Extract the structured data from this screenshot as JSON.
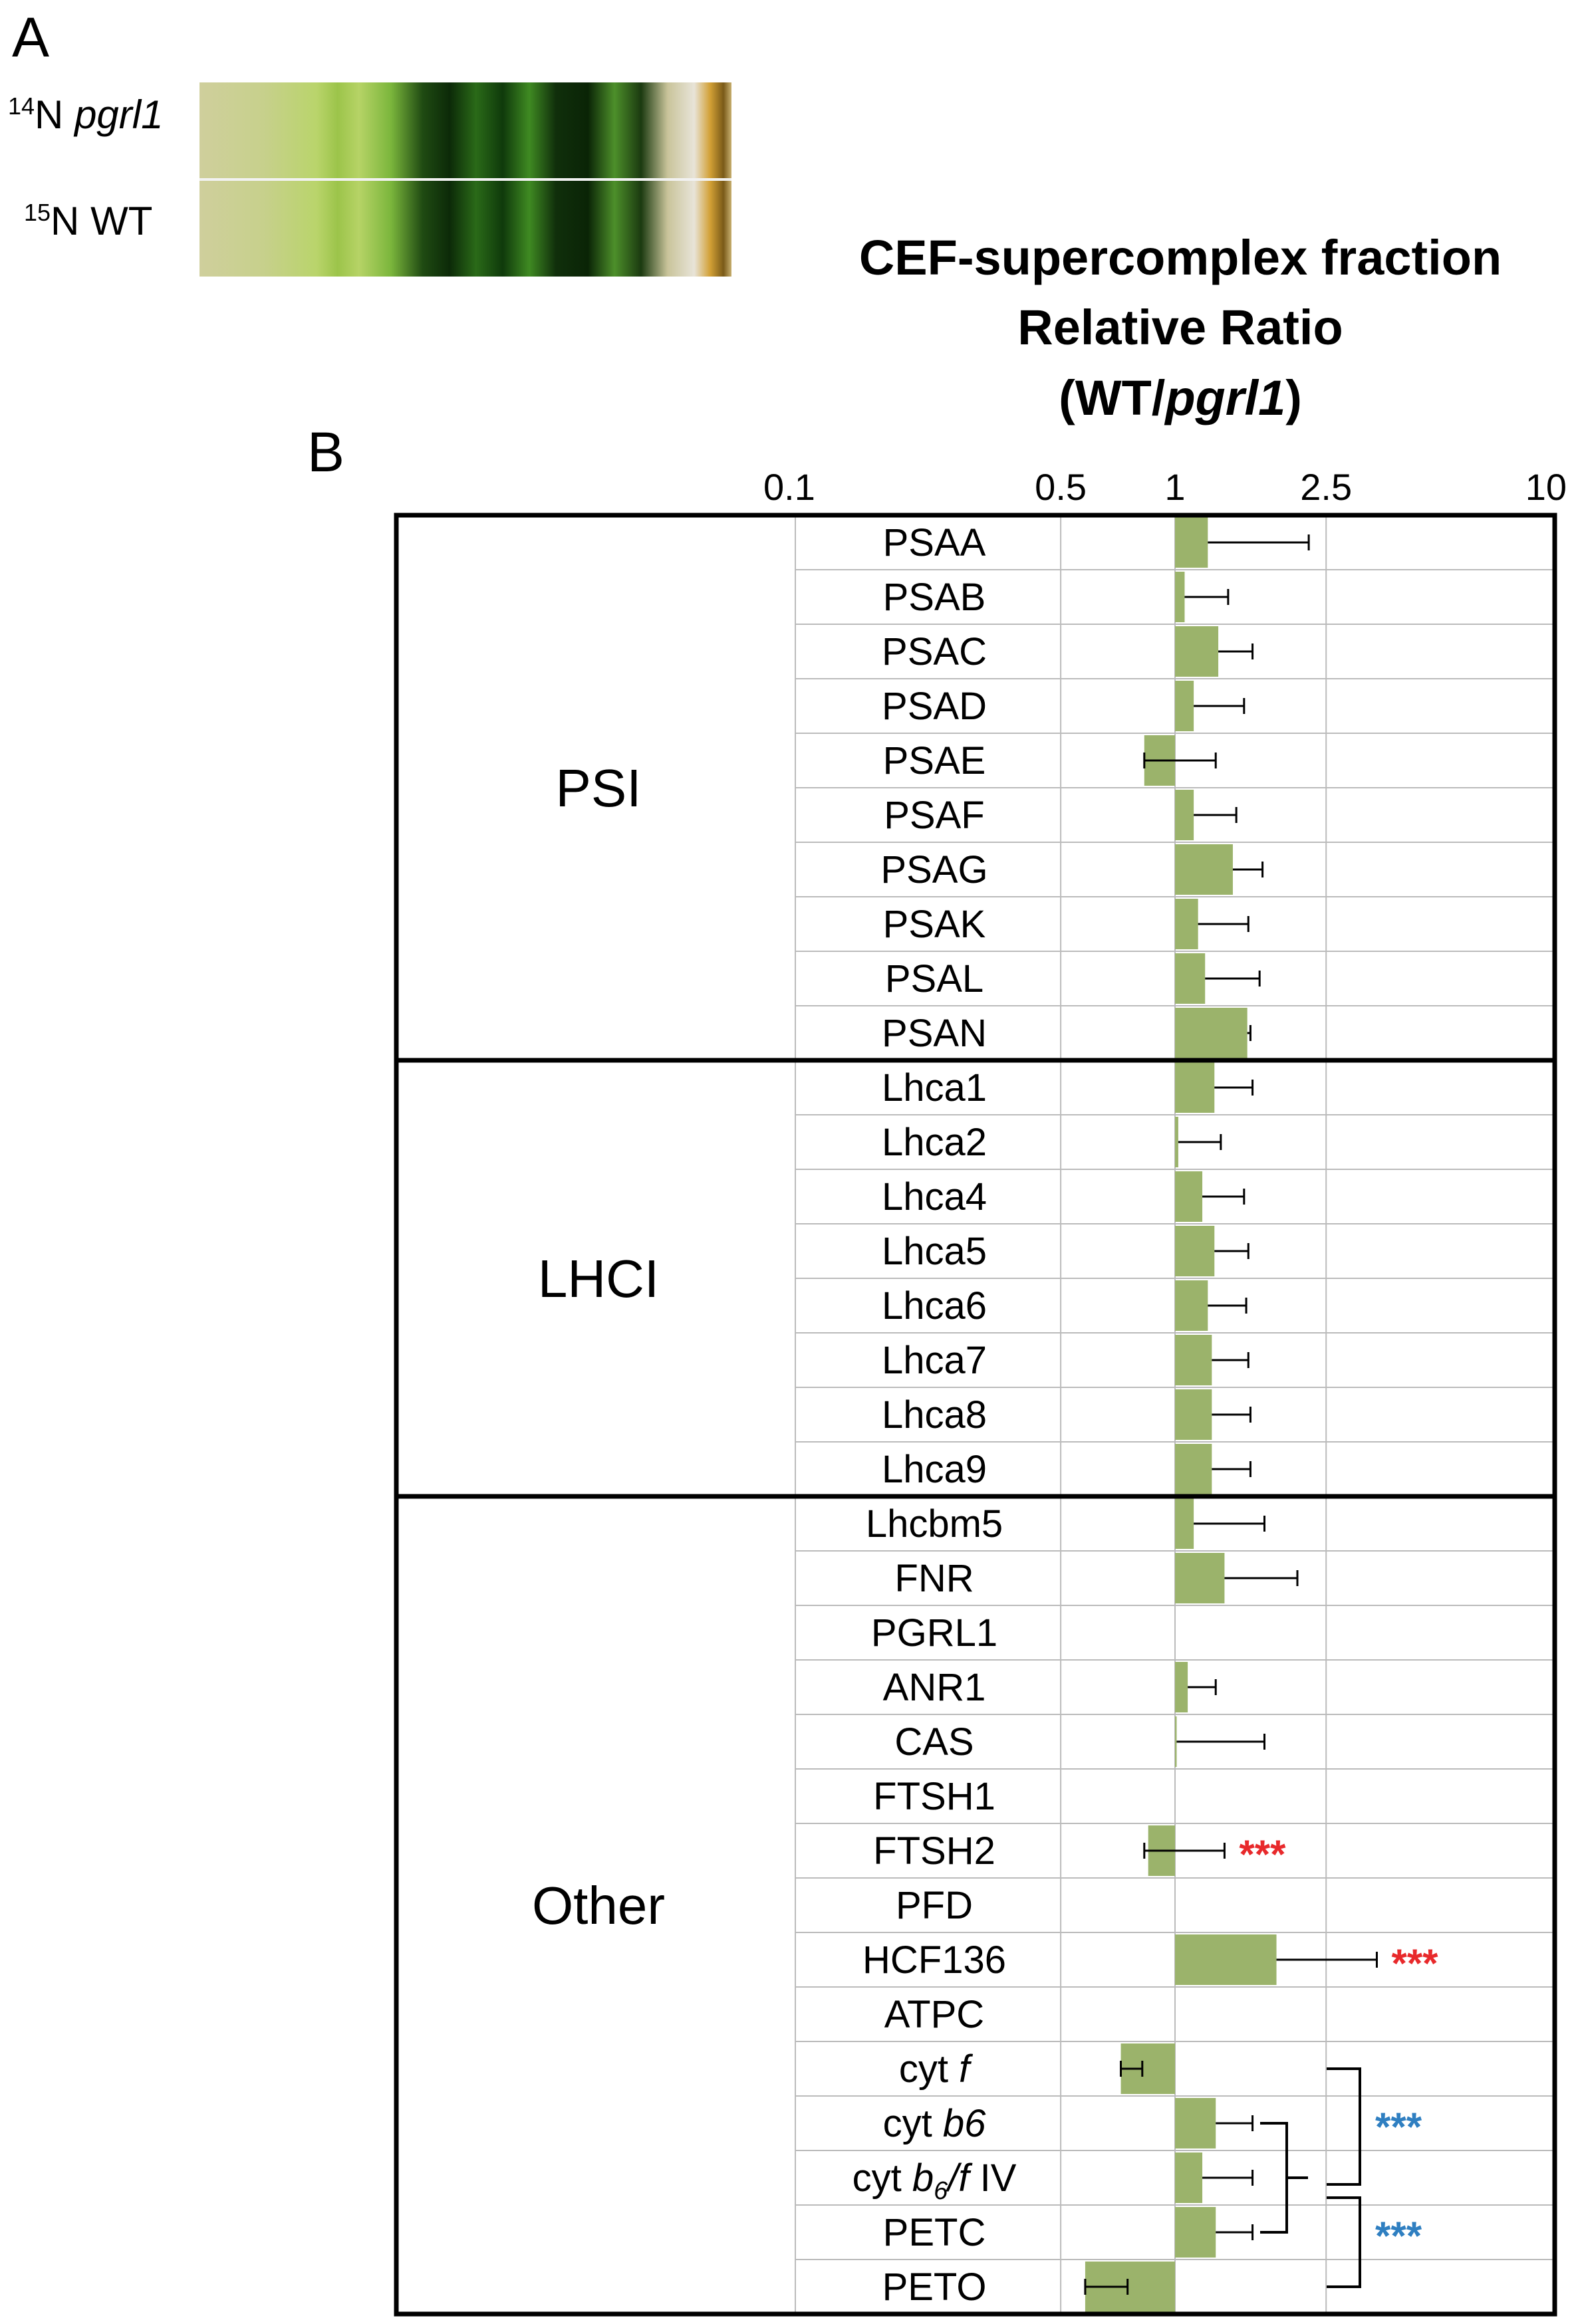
{
  "panel_a": {
    "letter": "A",
    "lanes": [
      {
        "isotope": "14",
        "element": "N",
        "genotype": "pgrl1",
        "italic": true
      },
      {
        "isotope": "15",
        "element": "N",
        "genotype": "WT",
        "italic": false
      }
    ]
  },
  "panel_b": {
    "letter": "B"
  },
  "title": {
    "line1": "CEF-supercomplex fraction",
    "line2": "Relative Ratio",
    "line3_prefix": "(WT/",
    "line3_italic": "pgrl1",
    "line3_suffix": ")"
  },
  "colors": {
    "bar": "#9bb36b",
    "grid": "#bbbbbb",
    "red_star": "#e8292b",
    "blue_star": "#2f7fc1",
    "frame": "#000000"
  },
  "chart_data": {
    "type": "bar",
    "orientation": "horizontal",
    "x_scale": "log",
    "x_baseline": 1,
    "xlim": [
      0.1,
      10
    ],
    "x_ticks": [
      0.1,
      0.5,
      1,
      2.5,
      10
    ],
    "x_tick_labels": [
      "0.1",
      "0.5",
      "1",
      "2.5",
      "10"
    ],
    "groups": [
      {
        "name": "PSI",
        "rows": [
          0,
          9
        ]
      },
      {
        "name": "LHCI",
        "rows": [
          10,
          17
        ]
      },
      {
        "name": "Other",
        "rows": [
          18,
          32
        ]
      }
    ],
    "rows": [
      {
        "label": "PSAA",
        "value": 1.22,
        "err_high": 2.25
      },
      {
        "label": "PSAB",
        "value": 1.06,
        "err_high": 1.38
      },
      {
        "label": "PSAC",
        "value": 1.3,
        "err_high": 1.6
      },
      {
        "label": "PSAD",
        "value": 1.12,
        "err_high": 1.52
      },
      {
        "label": "PSAE",
        "value": 0.83,
        "err_high": 1.28
      },
      {
        "label": "PSAF",
        "value": 1.12,
        "err_high": 1.45
      },
      {
        "label": "PSAG",
        "value": 1.42,
        "err_high": 1.7
      },
      {
        "label": "PSAK",
        "value": 1.15,
        "err_high": 1.56
      },
      {
        "label": "PSAL",
        "value": 1.2,
        "err_high": 1.67
      },
      {
        "label": "PSAN",
        "value": 1.55,
        "err_high": 1.58
      },
      {
        "label": "Lhca1",
        "value": 1.27,
        "err_high": 1.6
      },
      {
        "label": "Lhca2",
        "value": 1.02,
        "err_high": 1.32
      },
      {
        "label": "Lhca4",
        "value": 1.18,
        "err_high": 1.52
      },
      {
        "label": "Lhca5",
        "value": 1.27,
        "err_high": 1.56
      },
      {
        "label": "Lhca6",
        "value": 1.22,
        "err_high": 1.54
      },
      {
        "label": "Lhca7",
        "value": 1.25,
        "err_high": 1.56
      },
      {
        "label": "Lhca8",
        "value": 1.25,
        "err_high": 1.58
      },
      {
        "label": "Lhca9",
        "value": 1.25,
        "err_high": 1.58
      },
      {
        "label": "Lhcbm5",
        "value": 1.12,
        "err_high": 1.72
      },
      {
        "label": "FNR",
        "value": 1.35,
        "err_high": 2.1
      },
      {
        "label": "PGRL1",
        "value": null
      },
      {
        "label": "ANR1",
        "value": 1.08,
        "err_high": 1.28
      },
      {
        "label": "CAS",
        "value": 1.01,
        "err_high": 1.72
      },
      {
        "label": "FTSH1",
        "value": null
      },
      {
        "label": "FTSH2",
        "value": 0.85,
        "err_low": 0.83,
        "err_high": 1.35,
        "stars": "***",
        "star_color": "red"
      },
      {
        "label": "PFD",
        "value": null
      },
      {
        "label": "HCF136",
        "value": 1.85,
        "err_high": 3.4,
        "stars": "***",
        "star_color": "red"
      },
      {
        "label": "ATPC",
        "value": null
      },
      {
        "label": "cyt ",
        "label_italic": "f",
        "value": 0.72,
        "err_low": 0.72,
        "err_high": 0.82
      },
      {
        "label": "cyt ",
        "label_italic": "b6",
        "value": 1.28,
        "err_high": 1.6
      },
      {
        "label": "cyt ",
        "label_italic": "b",
        "label_sub": "6",
        "label_italic2": "/f",
        "label_tail": " IV",
        "value": 1.18,
        "err_high": 1.6
      },
      {
        "label": "PETC",
        "value": 1.28,
        "err_high": 1.6
      },
      {
        "label": "PETO",
        "value": 0.58,
        "err_low": 0.58,
        "err_high": 0.75
      }
    ],
    "significance_brackets": [
      {
        "from_row": 28,
        "to_row": 32,
        "stars": "***",
        "color": "blue"
      },
      {
        "from_row": 29,
        "to_row": 31,
        "stars": "***",
        "color": "blue"
      }
    ]
  }
}
